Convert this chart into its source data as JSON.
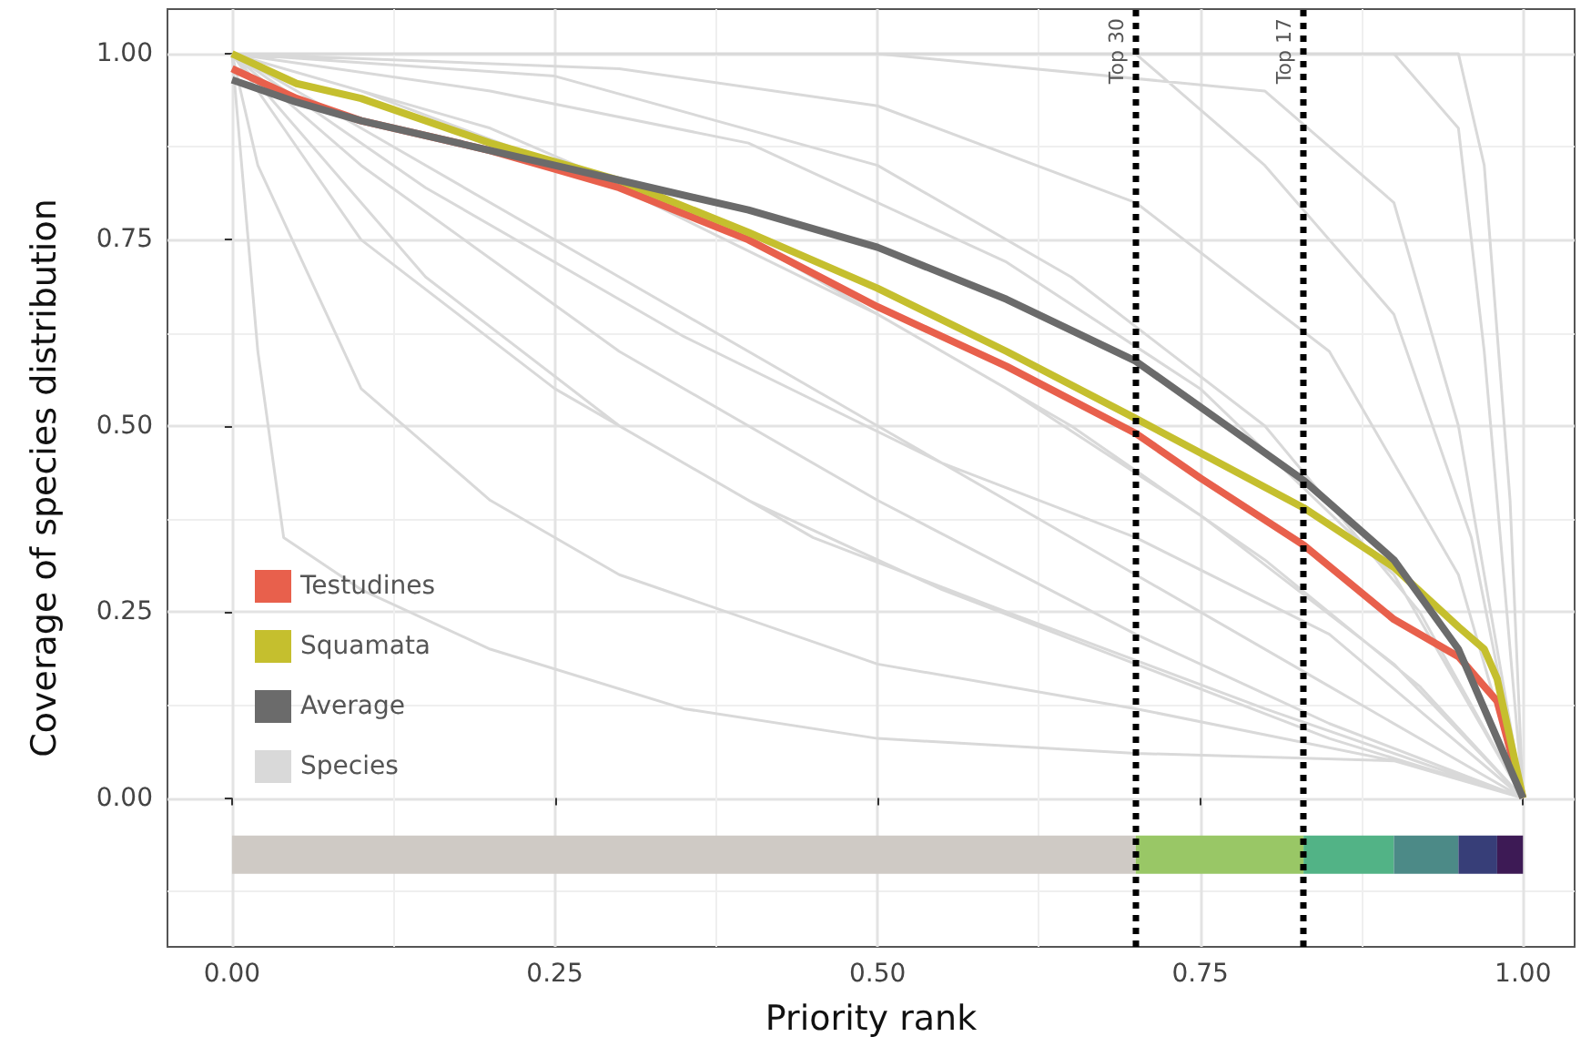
{
  "chart_data": {
    "type": "line",
    "xlabel": "Priority rank",
    "ylabel": "Coverage of species distribution",
    "xlim": [
      -0.05,
      1.04
    ],
    "ylim": [
      -0.2,
      1.06
    ],
    "xticks": [
      {
        "value": 0,
        "label": "0.00"
      },
      0.25,
      {
        "value": 0.5,
        "label": "0.50"
      },
      0.75,
      {
        "value": 1,
        "label": "1.00"
      }
    ],
    "yticks": [
      {
        "value": 0,
        "label": "0.00"
      },
      0.25,
      {
        "value": 0.5,
        "label": "0.50"
      },
      0.75,
      {
        "value": 1,
        "label": "1.00"
      }
    ],
    "grid": true,
    "legend": "bottom left",
    "marker": "none",
    "line_style": "solid",
    "ref_lines": [
      {
        "axis": "x",
        "value": 0.7,
        "label": "Top 30",
        "color": "#000000",
        "line_style": "dotted"
      },
      {
        "axis": "x",
        "value": 0.83,
        "label": "Top 17",
        "color": "#000000",
        "line_style": "dotted"
      }
    ],
    "series": [
      {
        "name": "Species",
        "color": "#d9d9d9",
        "x": [
          0,
          0.02,
          0.04,
          0.1,
          0.2,
          0.35,
          0.5,
          0.7,
          0.9,
          1,
          null,
          0,
          0.02,
          0.1,
          0.2,
          0.3,
          0.5,
          0.7,
          0.9,
          1,
          null,
          0,
          0.1,
          0.25,
          0.4,
          0.55,
          0.7,
          0.85,
          1,
          null,
          0,
          0.1,
          0.3,
          0.5,
          0.7,
          0.85,
          1,
          null,
          0,
          0.1,
          0.3,
          0.5,
          0.7,
          0.85,
          1,
          null,
          0,
          0.2,
          0.4,
          0.6,
          0.75,
          0.9,
          1,
          null,
          0,
          0.2,
          0.4,
          0.6,
          0.75,
          0.9,
          1,
          null,
          0,
          0.3,
          0.5,
          0.7,
          0.85,
          0.95,
          1,
          null,
          0,
          0.5,
          0.8,
          0.9,
          0.95,
          1,
          null,
          0,
          0.9,
          0.95,
          0.97,
          1,
          null,
          0,
          0.95,
          0.97,
          0.99,
          1,
          null,
          0,
          0.05,
          0.15,
          0.3,
          0.45,
          0.6,
          0.8,
          1,
          null,
          0,
          0.15,
          0.35,
          0.55,
          0.7,
          0.85,
          1,
          null,
          0,
          0.25,
          0.5,
          0.65,
          0.8,
          0.92,
          1,
          null,
          0,
          0.1,
          0.3,
          0.5,
          0.65,
          0.8,
          0.92,
          1,
          null,
          0,
          0.7,
          0.8,
          0.9,
          0.96,
          1
        ],
        "values": [
          1,
          0.6,
          0.35,
          0.28,
          0.2,
          0.12,
          0.08,
          0.06,
          0.05,
          0,
          null,
          1,
          0.85,
          0.55,
          0.4,
          0.3,
          0.18,
          0.12,
          0.05,
          0,
          null,
          1,
          0.75,
          0.55,
          0.4,
          0.28,
          0.18,
          0.08,
          0,
          null,
          1,
          0.85,
          0.6,
          0.4,
          0.22,
          0.1,
          0,
          null,
          1,
          0.9,
          0.7,
          0.5,
          0.3,
          0.15,
          0,
          null,
          1,
          0.9,
          0.75,
          0.55,
          0.38,
          0.18,
          0,
          null,
          1,
          0.95,
          0.88,
          0.72,
          0.55,
          0.3,
          0,
          null,
          1,
          0.98,
          0.93,
          0.8,
          0.6,
          0.3,
          0,
          null,
          1,
          1,
          0.95,
          0.8,
          0.5,
          0,
          null,
          1,
          1,
          0.9,
          0.6,
          0,
          null,
          1,
          1,
          0.85,
          0.4,
          0,
          null,
          1,
          0.9,
          0.7,
          0.5,
          0.35,
          0.25,
          0.12,
          0,
          null,
          1,
          0.82,
          0.62,
          0.45,
          0.35,
          0.22,
          0,
          null,
          1,
          0.97,
          0.85,
          0.7,
          0.5,
          0.25,
          0,
          null,
          1,
          0.95,
          0.82,
          0.65,
          0.5,
          0.32,
          0.15,
          0,
          null,
          1,
          1,
          0.85,
          0.65,
          0.35,
          0
        ]
      },
      {
        "name": "Testudines",
        "color": "#e8604c",
        "x": [
          0,
          0.05,
          0.1,
          0.2,
          0.25,
          0.3,
          0.4,
          0.5,
          0.6,
          0.7,
          0.75,
          0.83,
          0.9,
          0.95,
          0.98,
          1
        ],
        "values": [
          0.98,
          0.94,
          0.91,
          0.87,
          0.845,
          0.82,
          0.75,
          0.66,
          0.58,
          0.49,
          0.43,
          0.34,
          0.24,
          0.19,
          0.13,
          0
        ]
      },
      {
        "name": "Squamata",
        "color": "#c5bf2e",
        "x": [
          0,
          0.05,
          0.1,
          0.2,
          0.3,
          0.4,
          0.5,
          0.6,
          0.7,
          0.83,
          0.9,
          0.95,
          0.97,
          0.98,
          1
        ],
        "values": [
          1.0,
          0.96,
          0.94,
          0.88,
          0.83,
          0.76,
          0.685,
          0.6,
          0.51,
          0.39,
          0.31,
          0.23,
          0.2,
          0.16,
          0
        ]
      },
      {
        "name": "Average",
        "color": "#6b6b6b",
        "x": [
          0,
          0.05,
          0.1,
          0.2,
          0.25,
          0.3,
          0.4,
          0.5,
          0.6,
          0.7,
          0.83,
          0.9,
          0.95,
          1
        ],
        "values": [
          0.965,
          0.935,
          0.91,
          0.87,
          0.85,
          0.83,
          0.79,
          0.74,
          0.67,
          0.587,
          0.427,
          0.32,
          0.2,
          0
        ]
      },
      {
        "color": "#cfcac5",
        "x": [
          0,
          0.7
        ],
        "values": [
          -0.076,
          -0.076
        ]
      },
      {
        "color": "#99c766",
        "x": [
          0.7,
          0.83
        ],
        "values": [
          -0.076,
          -0.076
        ]
      },
      {
        "color": "#52b386",
        "x": [
          0.83,
          0.9
        ],
        "values": [
          -0.076,
          -0.076
        ]
      },
      {
        "color": "#4c8a87",
        "x": [
          0.9,
          0.95
        ],
        "values": [
          -0.076,
          -0.076
        ]
      },
      {
        "color": "#373e78",
        "x": [
          0.95,
          0.98
        ],
        "values": [
          -0.076,
          -0.076
        ]
      },
      {
        "color": "#3d1a55",
        "x": [
          0.98,
          1
        ],
        "values": [
          -0.076,
          -0.076
        ]
      }
    ]
  }
}
